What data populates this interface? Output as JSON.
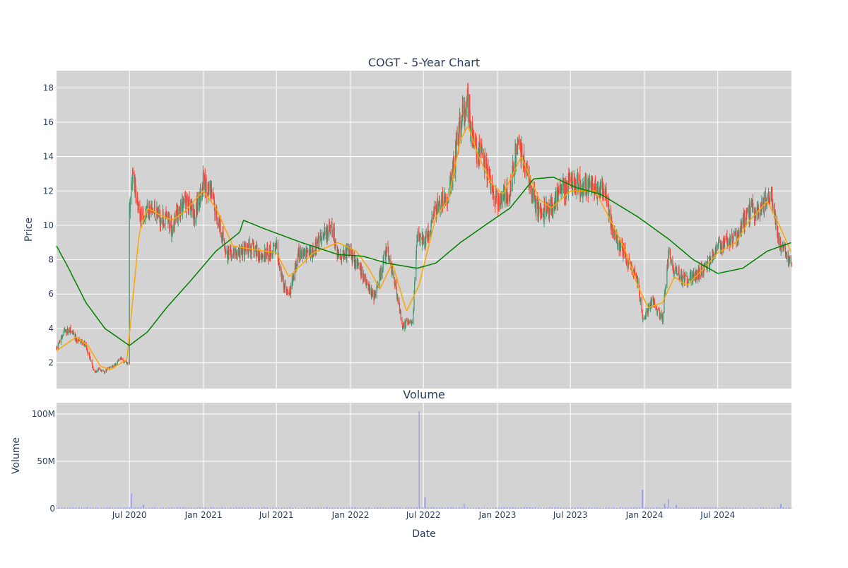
{
  "chart_data": [
    {
      "type": "candlestick",
      "title": "COGT - 5-Year Chart",
      "ylabel": "Price",
      "ylim": [
        0.5,
        19
      ],
      "yticks": [
        2,
        4,
        6,
        8,
        10,
        12,
        14,
        16,
        18
      ],
      "x_range": [
        "2020-01-02",
        "2024-12-31"
      ],
      "series": [
        {
          "name": "",
          "kind": "ohlc",
          "colors": {
            "up": "#3d9970",
            "down": "#ff4136"
          }
        },
        {
          "name": "",
          "kind": "moving_average_short",
          "color": "#ffa500"
        },
        {
          "name": "",
          "kind": "moving_average_long",
          "color": "#008000"
        }
      ],
      "price_anchors": [
        [
          "2020-01-02",
          2.8
        ],
        [
          "2020-01-20",
          3.8
        ],
        [
          "2020-02-05",
          3.9
        ],
        [
          "2020-02-20",
          3.3
        ],
        [
          "2020-03-10",
          3.2
        ],
        [
          "2020-03-25",
          2.3
        ],
        [
          "2020-04-05",
          1.4
        ],
        [
          "2020-04-15",
          1.6
        ],
        [
          "2020-04-30",
          1.5
        ],
        [
          "2020-05-20",
          1.8
        ],
        [
          "2020-06-10",
          2.2
        ],
        [
          "2020-06-30",
          1.9
        ],
        [
          "2020-07-01",
          11.0
        ],
        [
          "2020-07-10",
          13.0
        ],
        [
          "2020-07-25",
          10.5
        ],
        [
          "2020-08-15",
          11.0
        ],
        [
          "2020-09-15",
          10.5
        ],
        [
          "2020-10-15",
          10.0
        ],
        [
          "2020-11-15",
          11.5
        ],
        [
          "2020-12-10",
          10.5
        ],
        [
          "2020-12-31",
          12.5
        ],
        [
          "2021-01-20",
          11.8
        ],
        [
          "2021-02-10",
          10.0
        ],
        [
          "2021-03-01",
          8.2
        ],
        [
          "2021-04-01",
          8.4
        ],
        [
          "2021-05-01",
          8.6
        ],
        [
          "2021-06-01",
          8.2
        ],
        [
          "2021-07-01",
          8.7
        ],
        [
          "2021-07-20",
          6.5
        ],
        [
          "2021-08-05",
          6.2
        ],
        [
          "2021-08-25",
          8.3
        ],
        [
          "2021-10-01",
          8.6
        ],
        [
          "2021-11-15",
          9.8
        ],
        [
          "2021-12-01",
          8.3
        ],
        [
          "2022-01-01",
          8.5
        ],
        [
          "2022-02-01",
          7.0
        ],
        [
          "2022-03-01",
          5.8
        ],
        [
          "2022-04-01",
          8.6
        ],
        [
          "2022-04-20",
          6.8
        ],
        [
          "2022-05-10",
          4.2
        ],
        [
          "2022-06-05",
          4.4
        ],
        [
          "2022-06-15",
          9.5
        ],
        [
          "2022-07-10",
          9.2
        ],
        [
          "2022-08-01",
          11.0
        ],
        [
          "2022-09-01",
          11.5
        ],
        [
          "2022-10-01",
          16.0
        ],
        [
          "2022-10-20",
          17.0
        ],
        [
          "2022-11-01",
          15.0
        ],
        [
          "2022-12-01",
          13.5
        ],
        [
          "2023-01-01",
          11.2
        ],
        [
          "2023-02-01",
          12.0
        ],
        [
          "2023-02-20",
          15.0
        ],
        [
          "2023-03-15",
          13.0
        ],
        [
          "2023-04-15",
          10.5
        ],
        [
          "2023-05-20",
          11.3
        ],
        [
          "2023-07-01",
          12.5
        ],
        [
          "2023-08-15",
          12.2
        ],
        [
          "2023-09-25",
          12.0
        ],
        [
          "2023-10-15",
          9.5
        ],
        [
          "2023-11-15",
          8.2
        ],
        [
          "2023-12-15",
          6.8
        ],
        [
          "2023-12-28",
          4.4
        ],
        [
          "2024-01-20",
          5.6
        ],
        [
          "2024-02-15",
          4.5
        ],
        [
          "2024-03-01",
          8.5
        ],
        [
          "2024-03-15",
          7.4
        ],
        [
          "2024-04-15",
          6.8
        ],
        [
          "2024-06-01",
          7.5
        ],
        [
          "2024-07-01",
          8.8
        ],
        [
          "2024-08-15",
          9.2
        ],
        [
          "2024-09-15",
          10.8
        ],
        [
          "2024-10-15",
          11.0
        ],
        [
          "2024-11-10",
          12.0
        ],
        [
          "2024-12-01",
          9.0
        ],
        [
          "2024-12-31",
          7.7
        ]
      ],
      "ma_short_anchors": [
        [
          "2020-01-02",
          2.7
        ],
        [
          "2020-02-20",
          3.5
        ],
        [
          "2020-03-20",
          3.0
        ],
        [
          "2020-04-20",
          1.8
        ],
        [
          "2020-05-15",
          1.6
        ],
        [
          "2020-06-25",
          2.2
        ],
        [
          "2020-07-25",
          9.5
        ],
        [
          "2020-08-15",
          11.0
        ],
        [
          "2020-09-15",
          10.6
        ],
        [
          "2020-10-15",
          10.3
        ],
        [
          "2020-11-15",
          10.8
        ],
        [
          "2020-12-31",
          12.0
        ],
        [
          "2021-02-01",
          11.0
        ],
        [
          "2021-03-15",
          8.8
        ],
        [
          "2021-06-01",
          8.5
        ],
        [
          "2021-07-01",
          8.4
        ],
        [
          "2021-08-01",
          7.0
        ],
        [
          "2021-10-01",
          8.4
        ],
        [
          "2021-12-01",
          9.0
        ],
        [
          "2022-01-15",
          8.5
        ],
        [
          "2022-02-15",
          7.5
        ],
        [
          "2022-03-15",
          6.3
        ],
        [
          "2022-04-15",
          7.8
        ],
        [
          "2022-05-20",
          5.0
        ],
        [
          "2022-06-20",
          6.5
        ],
        [
          "2022-08-01",
          10.5
        ],
        [
          "2022-09-01",
          11.5
        ],
        [
          "2022-10-01",
          15.0
        ],
        [
          "2022-10-20",
          15.8
        ],
        [
          "2022-11-15",
          14.0
        ],
        [
          "2022-12-15",
          12.5
        ],
        [
          "2023-01-15",
          11.8
        ],
        [
          "2023-03-01",
          14.0
        ],
        [
          "2023-04-15",
          11.5
        ],
        [
          "2023-05-15",
          11.0
        ],
        [
          "2023-07-01",
          12.0
        ],
        [
          "2023-09-01",
          12.0
        ],
        [
          "2023-10-15",
          10.0
        ],
        [
          "2023-11-15",
          8.5
        ],
        [
          "2023-12-15",
          6.5
        ],
        [
          "2024-01-10",
          5.2
        ],
        [
          "2024-02-15",
          5.5
        ],
        [
          "2024-03-15",
          7.0
        ],
        [
          "2024-04-15",
          6.5
        ],
        [
          "2024-06-01",
          7.6
        ],
        [
          "2024-07-01",
          8.4
        ],
        [
          "2024-08-15",
          9.0
        ],
        [
          "2024-09-15",
          10.2
        ],
        [
          "2024-11-01",
          11.4
        ],
        [
          "2024-12-01",
          10.0
        ],
        [
          "2024-12-31",
          8.4
        ]
      ],
      "ma_long_anchors": [
        [
          "2020-01-02",
          8.8
        ],
        [
          "2020-02-01",
          7.5
        ],
        [
          "2020-03-15",
          5.5
        ],
        [
          "2020-05-01",
          4.0
        ],
        [
          "2020-07-01",
          3.0
        ],
        [
          "2020-08-15",
          3.8
        ],
        [
          "2020-10-01",
          5.2
        ],
        [
          "2020-12-01",
          6.8
        ],
        [
          "2021-02-01",
          8.5
        ],
        [
          "2021-04-01",
          9.6
        ],
        [
          "2021-04-10",
          10.3
        ],
        [
          "2021-06-01",
          9.8
        ],
        [
          "2021-09-01",
          9.0
        ],
        [
          "2021-12-01",
          8.3
        ],
        [
          "2022-02-01",
          8.2
        ],
        [
          "2022-04-01",
          7.8
        ],
        [
          "2022-06-15",
          7.5
        ],
        [
          "2022-08-01",
          7.8
        ],
        [
          "2022-10-01",
          9.0
        ],
        [
          "2022-12-01",
          10.0
        ],
        [
          "2023-02-01",
          11.0
        ],
        [
          "2023-04-01",
          12.7
        ],
        [
          "2023-05-20",
          12.8
        ],
        [
          "2023-07-15",
          12.2
        ],
        [
          "2023-09-15",
          11.8
        ],
        [
          "2023-12-15",
          10.5
        ],
        [
          "2024-03-01",
          9.2
        ],
        [
          "2024-05-01",
          8.0
        ],
        [
          "2024-07-01",
          7.2
        ],
        [
          "2024-09-01",
          7.5
        ],
        [
          "2024-11-01",
          8.5
        ],
        [
          "2024-12-31",
          9.0
        ]
      ]
    },
    {
      "type": "bar",
      "title": "Volume",
      "ylabel": "Volume",
      "xlabel": "Date",
      "ylim": [
        0,
        112000000
      ],
      "yticks": [
        0,
        50000000,
        100000000
      ],
      "ytick_labels": [
        "0",
        "50M",
        "100M"
      ],
      "xticks": [
        "2020-07-01",
        "2021-01-01",
        "2021-07-01",
        "2022-01-01",
        "2022-07-01",
        "2023-01-01",
        "2023-07-01",
        "2024-01-01",
        "2024-07-01"
      ],
      "xtick_labels": [
        "Jul 2020",
        "Jan 2021",
        "Jul 2021",
        "Jan 2022",
        "Jul 2022",
        "Jan 2023",
        "Jul 2023",
        "Jan 2024",
        "Jul 2024"
      ],
      "bar_color": "#8888ff",
      "baseline_volume": 1000000,
      "volume_spikes": [
        [
          "2020-07-06",
          16000000
        ],
        [
          "2020-08-05",
          4000000
        ],
        [
          "2022-06-20",
          103000000
        ],
        [
          "2022-07-05",
          12000000
        ],
        [
          "2022-10-10",
          5000000
        ],
        [
          "2023-12-27",
          20000000
        ],
        [
          "2024-02-20",
          5000000
        ],
        [
          "2024-03-01",
          10000000
        ],
        [
          "2024-03-20",
          4000000
        ],
        [
          "2024-12-05",
          5000000
        ]
      ]
    }
  ],
  "colors": {
    "plot_background": "#d3d3d3",
    "grid": "#ffffff",
    "text": "#2a3f5f"
  }
}
